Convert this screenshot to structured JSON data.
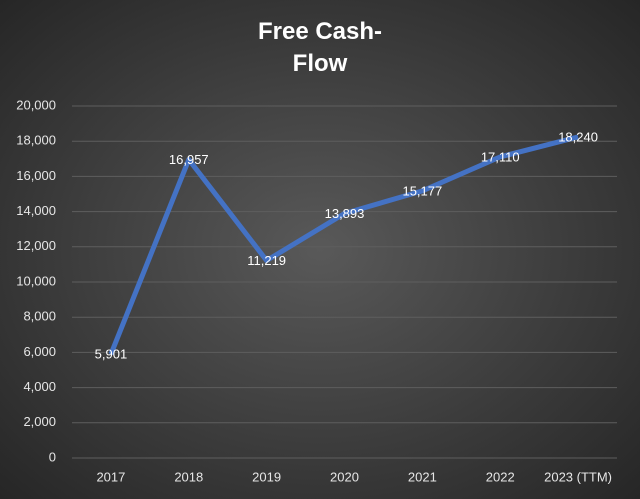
{
  "chart_data": {
    "type": "line",
    "title": "Free Cash-Flow",
    "categories": [
      "2017",
      "2018",
      "2019",
      "2020",
      "2021",
      "2022",
      "2023 (TTM)"
    ],
    "values": [
      5901,
      16957,
      11219,
      13893,
      15177,
      17110,
      18240
    ],
    "value_labels": [
      "5,901",
      "16,957",
      "11,219",
      "13,893",
      "15,177",
      "17,110",
      "18,240"
    ],
    "color": "#4472c4",
    "ylim": [
      0,
      20000
    ],
    "yticks": [
      0,
      {
        "value": 2000,
        "label": "2,000"
      },
      {
        "value": 4000,
        "label": "4,000"
      },
      {
        "value": 6000,
        "label": "6,000"
      },
      {
        "value": 8000,
        "label": "8,000"
      },
      {
        "value": 10000,
        "label": "10,000"
      },
      {
        "value": 12000,
        "label": "12,000"
      },
      {
        "value": 14000,
        "label": "14,000"
      },
      {
        "value": 16000,
        "label": "16,000"
      },
      {
        "value": 18000,
        "label": "18,000"
      },
      {
        "value": 20000,
        "label": "20,000"
      }
    ],
    "grid": true
  }
}
